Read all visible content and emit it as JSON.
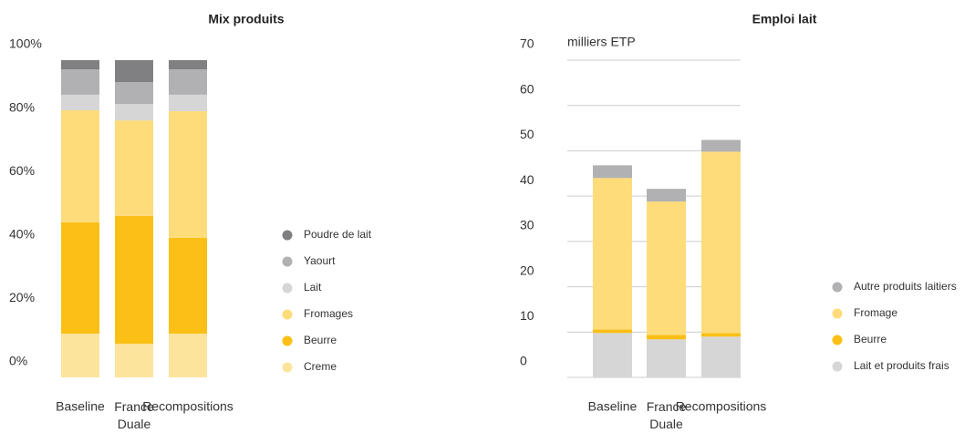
{
  "chart_data": [
    {
      "type": "stacked_bar",
      "title": "Mix produits",
      "categories": [
        "Baseline",
        "France Duale",
        "Recompositions"
      ],
      "series": [
        {
          "name": "Creme",
          "color": "#fde49d",
          "values": [
            13.8,
            10.6,
            13.8
          ]
        },
        {
          "name": "Beurre",
          "color": "#fbbf16",
          "values": [
            35.1,
            40.3,
            30.2
          ]
        },
        {
          "name": "Fromages",
          "color": "#fedc7a",
          "values": [
            35.3,
            30.1,
            39.9
          ]
        },
        {
          "name": "Lait",
          "color": "#d6d6d6",
          "values": [
            4.9,
            5.2,
            5.2
          ]
        },
        {
          "name": "Yaourt",
          "color": "#b1b1b4",
          "values": [
            8.0,
            6.9,
            8.0
          ]
        },
        {
          "name": "Poudre de lait",
          "color": "#808083",
          "values": [
            2.9,
            6.9,
            2.9
          ]
        }
      ],
      "ylim": [
        0,
        100
      ],
      "yticks": [
        {
          "value": 0,
          "label": "0%"
        },
        {
          "value": 20,
          "label": "20%"
        },
        {
          "value": 40,
          "label": "40%"
        },
        {
          "value": 60,
          "label": "60%"
        },
        {
          "value": 80,
          "label": "80%"
        },
        {
          "value": 100,
          "label": "100%"
        }
      ],
      "grid": false
    },
    {
      "type": "stacked_bar",
      "title": "Emploi lait",
      "annotation": "milliers ETP",
      "categories": [
        "Baseline",
        "France Duale",
        "Recompositions"
      ],
      "series": [
        {
          "name": "Lait et produits frais",
          "color": "#d6d6d6",
          "values": [
            9.8,
            8.4,
            9.0
          ]
        },
        {
          "name": "Beurre",
          "color": "#fbbf16",
          "values": [
            0.8,
            1.0,
            0.8
          ]
        },
        {
          "name": "Fromage",
          "color": "#fedc7a",
          "values": [
            33.4,
            29.4,
            40.0
          ]
        },
        {
          "name": "Autre produits laitiers",
          "color": "#b1b1b4",
          "values": [
            2.8,
            2.8,
            2.6
          ]
        }
      ],
      "ylim": [
        0,
        70
      ],
      "yticks": [
        0,
        10,
        20,
        30,
        40,
        50,
        60,
        70
      ],
      "grid": true
    }
  ]
}
